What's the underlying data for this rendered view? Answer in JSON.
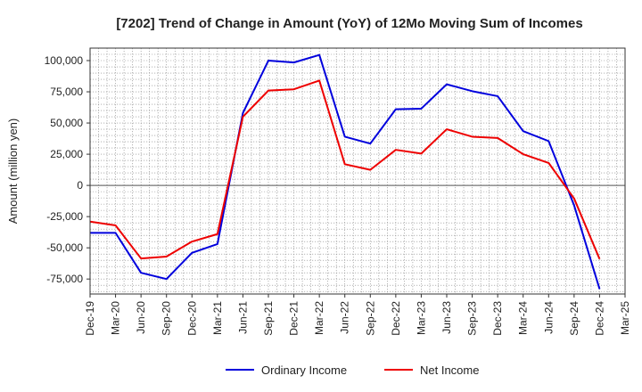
{
  "chart_data": {
    "type": "line",
    "title": "[7202]  Trend of Change in Amount (YoY) of 12Mo Moving Sum of Incomes",
    "xlabel": "",
    "ylabel": "Amount (million yen)",
    "ylim": [
      -87000,
      110000
    ],
    "yticks": [
      100000,
      75000,
      50000,
      25000,
      0,
      -25000,
      -50000,
      -75000
    ],
    "ytick_labels": [
      "100,000",
      "75,000",
      "50,000",
      "25,000",
      "0",
      "-25,000",
      "-50,000",
      "-75,000"
    ],
    "categories": [
      "Dec-19",
      "Mar-20",
      "Jun-20",
      "Sep-20",
      "Dec-20",
      "Mar-21",
      "Jun-21",
      "Sep-21",
      "Dec-21",
      "Mar-22",
      "Jun-22",
      "Sep-22",
      "Dec-22",
      "Mar-23",
      "Jun-23",
      "Sep-23",
      "Dec-23",
      "Mar-24",
      "Jun-24",
      "Sep-24",
      "Dec-24",
      "Mar-25"
    ],
    "grid": true,
    "legend_position": "bottom",
    "series": [
      {
        "name": "Ordinary Income",
        "color": "#0000dd",
        "values": [
          -38000,
          -38000,
          -70000,
          -75000,
          -54000,
          -47000,
          58000,
          100000,
          98500,
          104500,
          39000,
          33500,
          61000,
          61500,
          81000,
          75500,
          71500,
          43500,
          35500,
          -16000,
          -83000,
          null
        ]
      },
      {
        "name": "Net Income",
        "color": "#ee0000",
        "values": [
          -29000,
          -32000,
          -58500,
          -57000,
          -45000,
          -39000,
          55000,
          76000,
          77000,
          84000,
          17000,
          12500,
          28500,
          25500,
          45000,
          39000,
          38000,
          25000,
          18000,
          -10500,
          -59000,
          null
        ]
      }
    ]
  }
}
